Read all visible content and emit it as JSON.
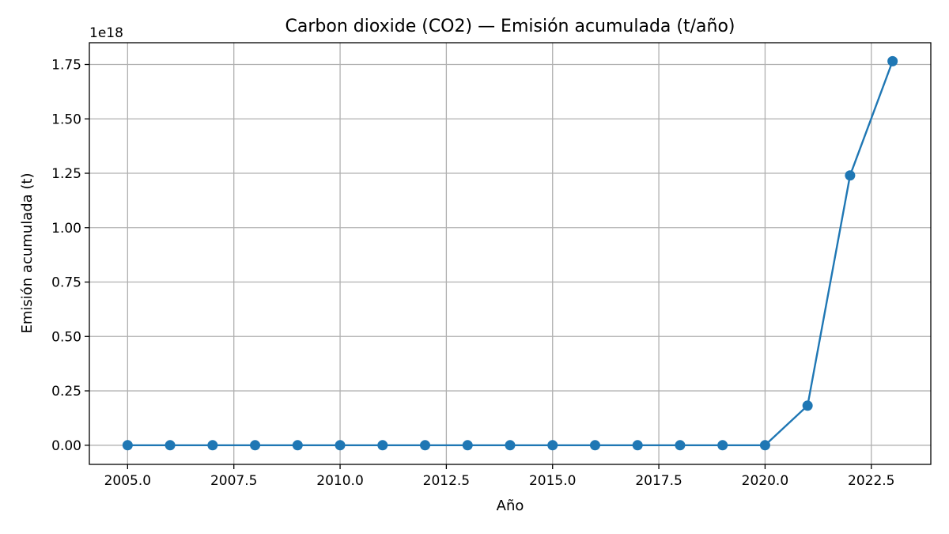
{
  "chart_data": {
    "type": "line",
    "title": "Carbon dioxide (CO2) — Emisión acumulada (t/año)",
    "xlabel": "Año",
    "ylabel": "Emisión acumulada (t)",
    "y_offset_label": "1e18",
    "y_scale_factor": 1e+18,
    "xlim": [
      2004.1,
      2023.9
    ],
    "ylim": [
      -0.088,
      1.85
    ],
    "x_ticks": [
      2005.0,
      2007.5,
      2010.0,
      2012.5,
      2015.0,
      2017.5,
      2020.0,
      2022.5
    ],
    "x_tick_labels": [
      "2005.0",
      "2007.5",
      "2010.0",
      "2012.5",
      "2015.0",
      "2017.5",
      "2020.0",
      "2022.5"
    ],
    "y_ticks": [
      0.0,
      0.25,
      0.5,
      0.75,
      1.0,
      1.25,
      1.5,
      1.75
    ],
    "y_tick_labels": [
      "0.00",
      "0.25",
      "0.50",
      "0.75",
      "1.00",
      "1.25",
      "1.50",
      "1.75"
    ],
    "grid": true,
    "series": [
      {
        "color": "#1f77b4",
        "marker": "circle",
        "x": [
          2005,
          2006,
          2007,
          2008,
          2009,
          2010,
          2011,
          2012,
          2013,
          2014,
          2015,
          2016,
          2017,
          2018,
          2019,
          2020,
          2021,
          2022,
          2023
        ],
        "y": [
          0,
          0,
          0,
          0,
          0,
          0,
          0,
          0,
          0,
          0,
          0,
          0,
          0,
          0,
          0,
          0,
          0.182,
          1.24,
          1.765
        ]
      }
    ]
  }
}
